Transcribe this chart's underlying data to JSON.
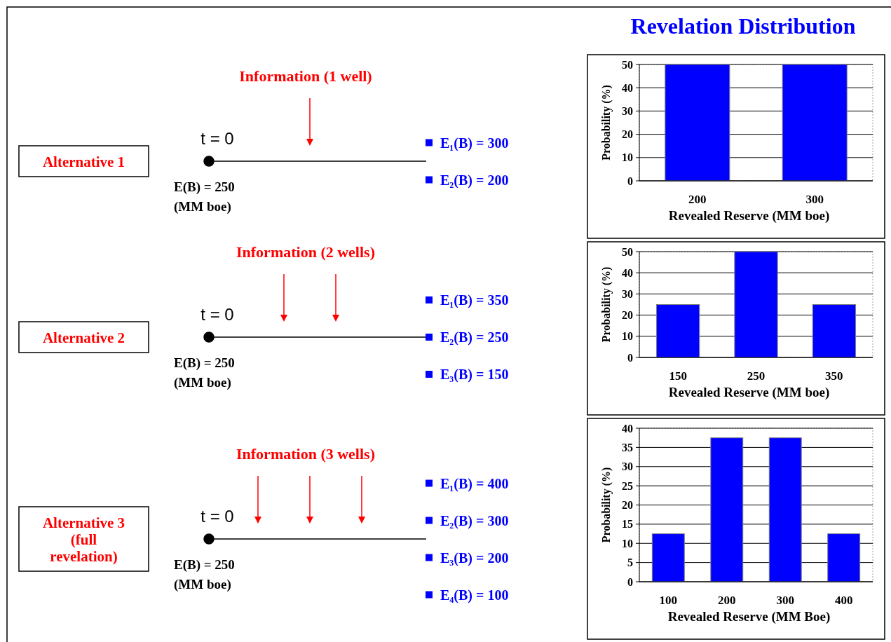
{
  "chart_data": [
    {
      "type": "other",
      "title": "Alternative 1",
      "annotations": [
        "Information (1 well)",
        "t = 0",
        "E(B) = 250",
        "(MM boe)",
        "E₁(B) = 300",
        "E₂(B) = 200"
      ]
    },
    {
      "type": "bar",
      "title": "Revelation Distribution",
      "categories": [
        "200",
        "300"
      ],
      "values": [
        50,
        50
      ],
      "color": "#0000ff",
      "ylim": [
        0,
        50
      ],
      "yticks": [
        0,
        10,
        20,
        30,
        40,
        50
      ],
      "ylabel": "Probability (%)",
      "xlabel": "Revealed Reserve (MM boe)",
      "grid": "y"
    },
    {
      "type": "other",
      "title": "Alternative 2",
      "annotations": [
        "Information (2 wells)",
        "t = 0",
        "E(B) = 250",
        "(MM boe)",
        "E₁(B) = 350",
        "E₂(B) = 250",
        "E₃(B) = 150"
      ]
    },
    {
      "type": "bar",
      "categories": [
        "150",
        "250",
        "350"
      ],
      "values": [
        25,
        50,
        25
      ],
      "color": "#0000ff",
      "ylim": [
        0,
        50
      ],
      "yticks": [
        0,
        10,
        20,
        30,
        40,
        50
      ],
      "ylabel": "Probability (%)",
      "xlabel": "Revealed Reserve (MM boe)",
      "grid": "y"
    },
    {
      "type": "other",
      "title": "Alternative 3 (full revelation)",
      "annotations": [
        "Information (3 wells)",
        "t = 0",
        "E(B) = 250",
        "(MM boe)",
        "E₁(B) = 400",
        "E₂(B) = 300",
        "E₃(B) = 200",
        "E₄(B) = 100"
      ]
    },
    {
      "type": "bar",
      "categories": [
        "100",
        "200",
        "300",
        "400"
      ],
      "values": [
        12.5,
        37.5,
        37.5,
        12.5
      ],
      "color": "#0000ff",
      "ylim": [
        0,
        40
      ],
      "yticks": [
        0,
        5,
        10,
        15,
        20,
        25,
        30,
        35,
        40
      ],
      "ylabel": "Probability (%)",
      "xlabel": "Revealed Reserve (MM Boe)",
      "grid": "y"
    }
  ]
}
